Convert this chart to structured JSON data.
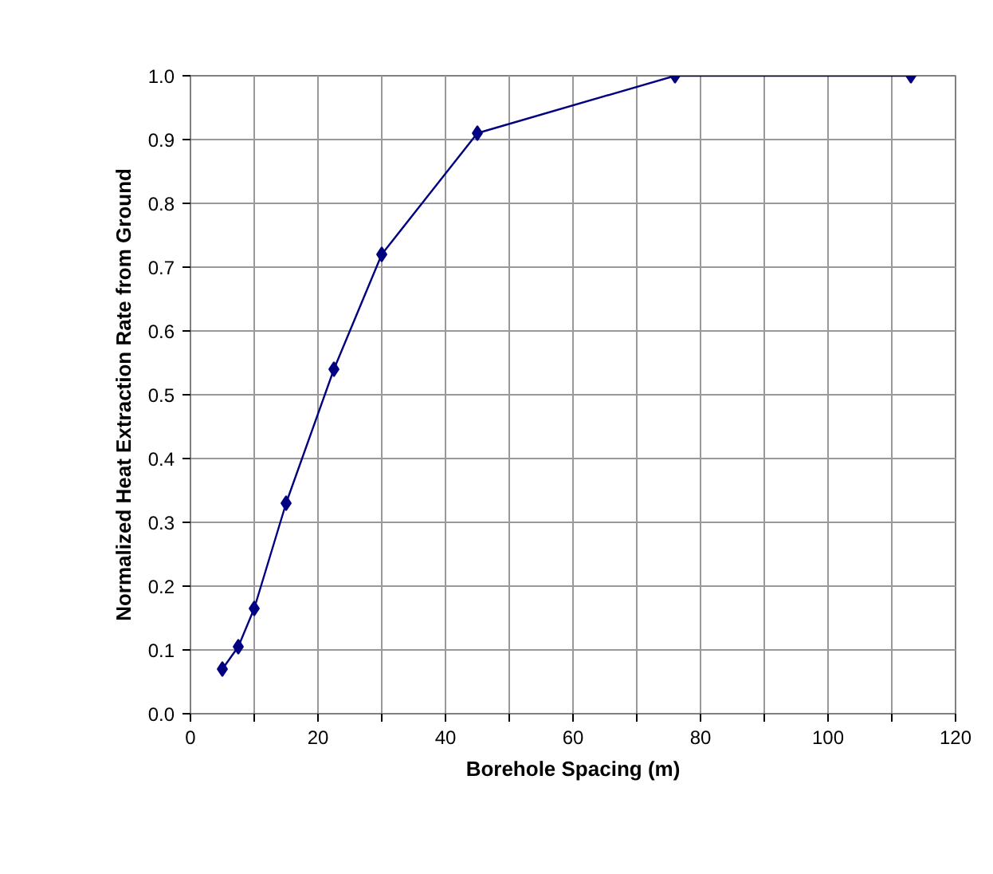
{
  "chart_data": {
    "type": "line",
    "xlabel": "Borehole Spacing (m)",
    "ylabel": "Normalized Heat Extraction Rate from Ground",
    "x": [
      5,
      7.5,
      10,
      15,
      22.5,
      30,
      45,
      76,
      113
    ],
    "series": [
      {
        "color": "#000080",
        "values": [
          0.07,
          0.105,
          0.165,
          0.33,
          0.54,
          0.72,
          0.91,
          1.0,
          1.0
        ]
      }
    ],
    "xlim": [
      0,
      120
    ],
    "ylim": [
      0,
      1
    ],
    "xticks": [
      0,
      {
        "value": 10,
        "label": null
      },
      20,
      {
        "value": 30,
        "label": null
      },
      40,
      {
        "value": 50,
        "label": null
      },
      60,
      {
        "value": 70,
        "label": null
      },
      80,
      {
        "value": 90,
        "label": null
      },
      100,
      {
        "value": 110,
        "label": null
      },
      120
    ],
    "yticks": [
      "0.0",
      0.1,
      0.2,
      0.3,
      0.4,
      0.5,
      0.6,
      0.7,
      0.8,
      0.9,
      "1.0"
    ],
    "grid": true,
    "marker": "diamond",
    "line_style": "solid"
  }
}
